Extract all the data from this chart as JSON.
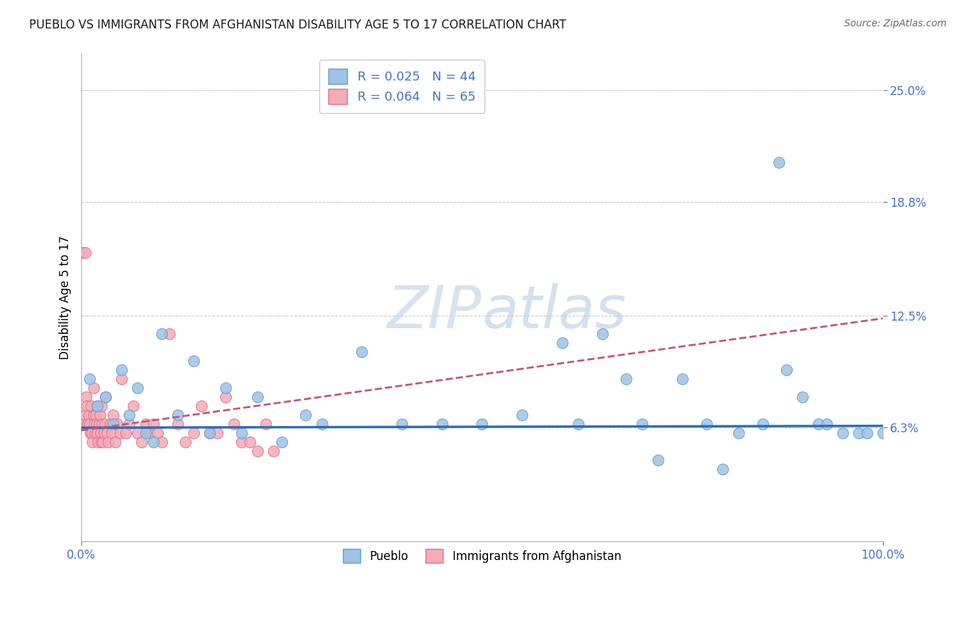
{
  "title": "PUEBLO VS IMMIGRANTS FROM AFGHANISTAN DISABILITY AGE 5 TO 17 CORRELATION CHART",
  "source": "Source: ZipAtlas.com",
  "ylabel": "Disability Age 5 to 17",
  "xlim": [
    0,
    1.0
  ],
  "ylim": [
    0,
    0.27
  ],
  "xtick_positions": [
    0.0,
    1.0
  ],
  "xticklabels": [
    "0.0%",
    "100.0%"
  ],
  "ytick_positions": [
    0.063,
    0.125,
    0.188,
    0.25
  ],
  "ytick_labels": [
    "6.3%",
    "12.5%",
    "18.8%",
    "25.0%"
  ],
  "pueblo_color": "#9DC3E6",
  "pueblo_edge_color": "#5B9BD5",
  "afghan_color": "#F4ACB7",
  "afghan_edge_color": "#E06B8A",
  "blue_line_color": "#2E6DB4",
  "pink_line_color": "#C0567A",
  "blue_slope": 0.001,
  "blue_intercept": 0.063,
  "pink_slope": 0.062,
  "pink_intercept": 0.0615,
  "legend_R_blue": "R = 0.025",
  "legend_N_blue": "N = 44",
  "legend_R_pink": "R = 0.064",
  "legend_N_pink": "N = 65",
  "legend_color": "#4472C4",
  "pueblo_x": [
    0.01,
    0.02,
    0.03,
    0.04,
    0.05,
    0.06,
    0.07,
    0.08,
    0.09,
    0.1,
    0.12,
    0.14,
    0.16,
    0.18,
    0.2,
    0.22,
    0.25,
    0.28,
    0.3,
    0.35,
    0.4,
    0.45,
    0.5,
    0.55,
    0.6,
    0.62,
    0.65,
    0.68,
    0.7,
    0.72,
    0.75,
    0.78,
    0.8,
    0.82,
    0.85,
    0.87,
    0.88,
    0.9,
    0.92,
    0.93,
    0.95,
    0.97,
    0.98,
    1.0
  ],
  "pueblo_y": [
    0.09,
    0.075,
    0.08,
    0.065,
    0.095,
    0.07,
    0.085,
    0.06,
    0.055,
    0.115,
    0.07,
    0.1,
    0.06,
    0.085,
    0.06,
    0.08,
    0.055,
    0.07,
    0.065,
    0.105,
    0.065,
    0.065,
    0.065,
    0.07,
    0.11,
    0.065,
    0.115,
    0.09,
    0.065,
    0.045,
    0.09,
    0.065,
    0.04,
    0.06,
    0.065,
    0.21,
    0.095,
    0.08,
    0.065,
    0.065,
    0.06,
    0.06,
    0.06,
    0.06
  ],
  "afghan_x": [
    0.002,
    0.004,
    0.005,
    0.006,
    0.007,
    0.008,
    0.009,
    0.01,
    0.011,
    0.012,
    0.013,
    0.014,
    0.015,
    0.015,
    0.016,
    0.017,
    0.018,
    0.019,
    0.02,
    0.02,
    0.021,
    0.022,
    0.023,
    0.024,
    0.025,
    0.025,
    0.026,
    0.027,
    0.028,
    0.029,
    0.03,
    0.032,
    0.034,
    0.036,
    0.038,
    0.04,
    0.042,
    0.045,
    0.048,
    0.05,
    0.055,
    0.06,
    0.065,
    0.07,
    0.075,
    0.08,
    0.085,
    0.09,
    0.095,
    0.1,
    0.11,
    0.12,
    0.13,
    0.14,
    0.15,
    0.16,
    0.17,
    0.18,
    0.19,
    0.2,
    0.21,
    0.22,
    0.23,
    0.24,
    0.005
  ],
  "afghan_y": [
    0.16,
    0.065,
    0.07,
    0.08,
    0.075,
    0.065,
    0.07,
    0.065,
    0.06,
    0.075,
    0.06,
    0.055,
    0.07,
    0.085,
    0.065,
    0.06,
    0.07,
    0.065,
    0.06,
    0.075,
    0.055,
    0.065,
    0.07,
    0.06,
    0.055,
    0.075,
    0.065,
    0.055,
    0.06,
    0.065,
    0.08,
    0.06,
    0.055,
    0.065,
    0.06,
    0.07,
    0.055,
    0.065,
    0.06,
    0.09,
    0.06,
    0.065,
    0.075,
    0.06,
    0.055,
    0.065,
    0.06,
    0.065,
    0.06,
    0.055,
    0.115,
    0.065,
    0.055,
    0.06,
    0.075,
    0.06,
    0.06,
    0.08,
    0.065,
    0.055,
    0.055,
    0.05,
    0.065,
    0.05,
    0.16
  ]
}
